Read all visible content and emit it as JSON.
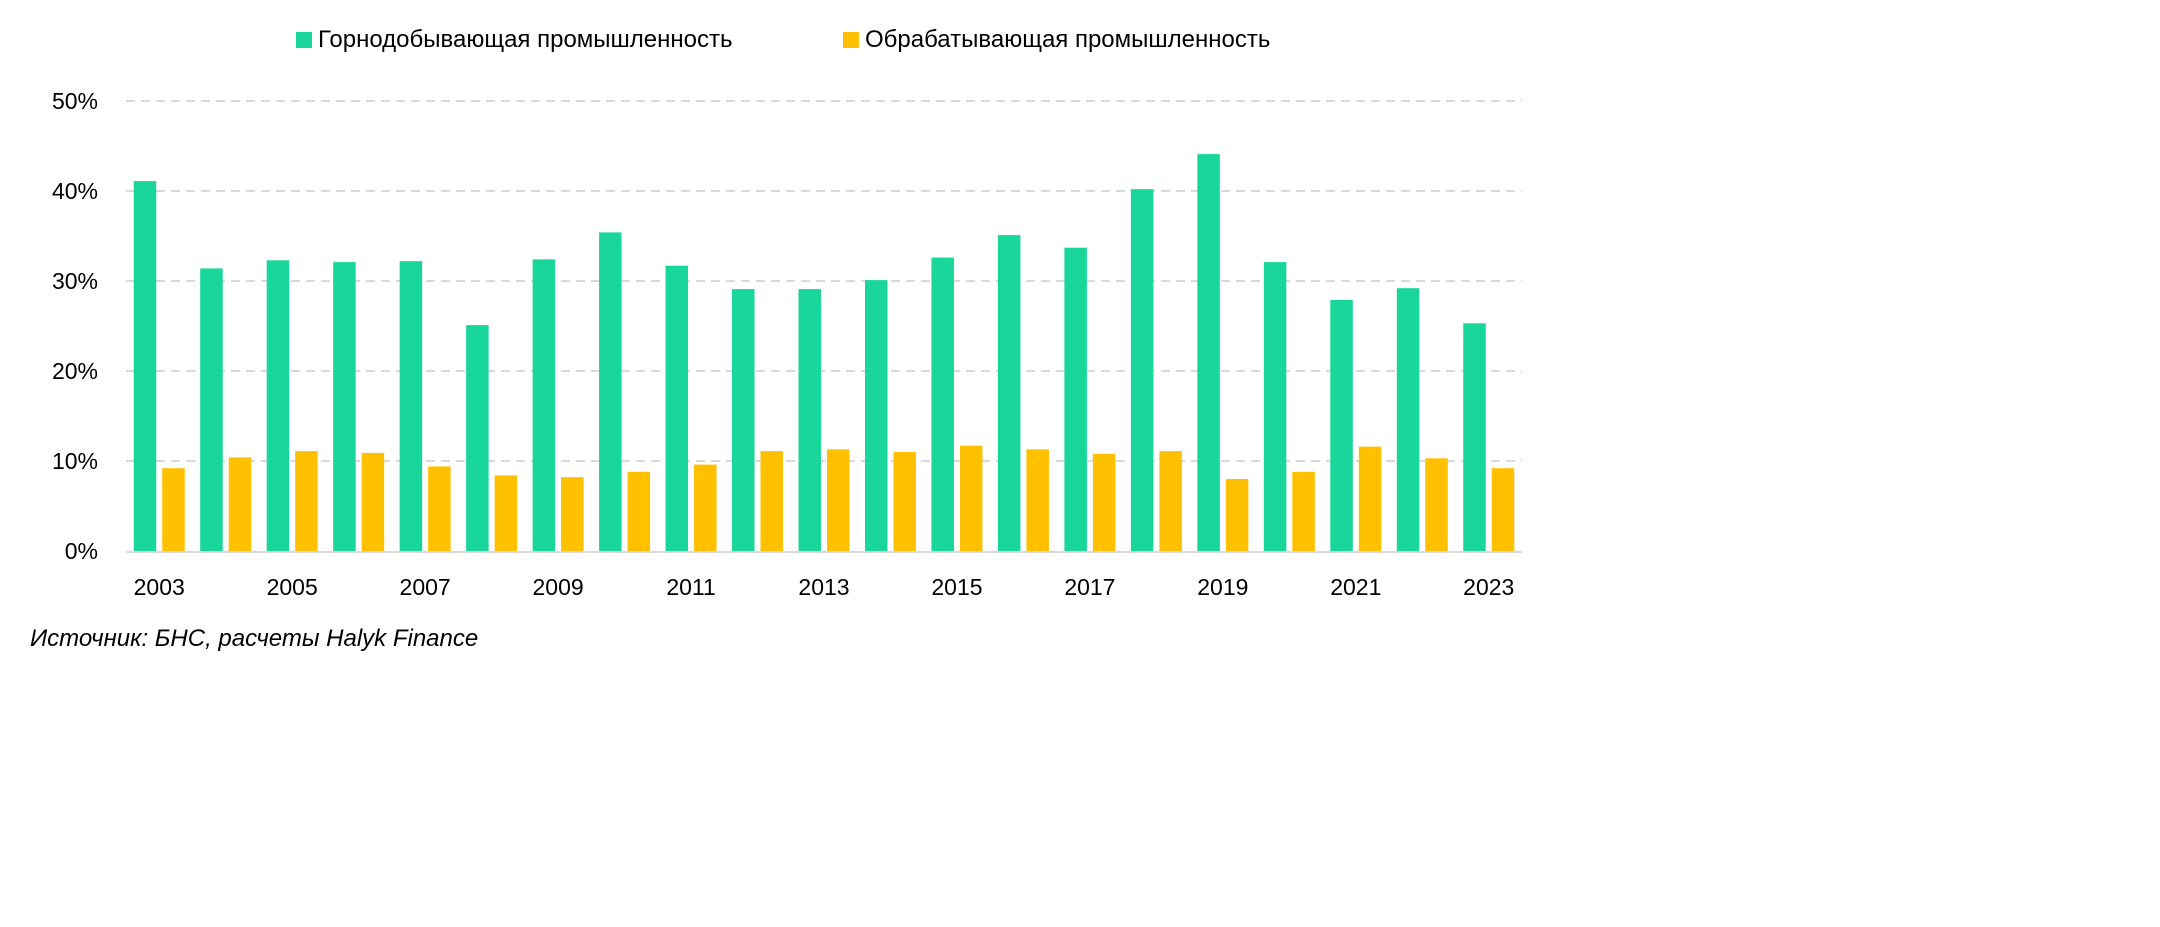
{
  "chart_data": {
    "type": "bar",
    "categories": [
      "2003",
      "2004",
      "2005",
      "2006",
      "2007",
      "2008",
      "2009",
      "2010",
      "2011",
      "2012",
      "2013",
      "2014",
      "2015",
      "2016",
      "2017",
      "2018",
      "2019",
      "2020",
      "2021",
      "2022",
      "2023"
    ],
    "x_tick_labels": [
      "2003",
      "2005",
      "2007",
      "2009",
      "2011",
      "2013",
      "2015",
      "2017",
      "2019",
      "2021",
      "2023"
    ],
    "series": [
      {
        "name": "Горнодобывающая промышленность",
        "color": "#19d69a",
        "values": [
          41.1,
          31.4,
          32.3,
          32.1,
          32.2,
          25.1,
          32.4,
          35.4,
          31.7,
          29.1,
          29.1,
          30.1,
          32.6,
          35.1,
          33.7,
          40.2,
          44.1,
          32.1,
          27.9,
          29.2,
          25.3
        ]
      },
      {
        "name": "Обрабатывающая промышленность",
        "color": "#ffc000",
        "values": [
          9.2,
          10.4,
          11.1,
          10.9,
          9.4,
          8.4,
          8.2,
          8.8,
          9.6,
          11.1,
          11.3,
          11.0,
          11.7,
          11.3,
          10.8,
          11.1,
          8.0,
          8.8,
          11.6,
          10.3,
          9.2
        ]
      }
    ],
    "y_ticks": [
      0,
      10,
      20,
      30,
      40,
      50
    ],
    "y_tick_labels": [
      "0%",
      "10%",
      "20%",
      "30%",
      "40%",
      "50%"
    ],
    "ylim": [
      0,
      50
    ],
    "grid": true,
    "legend_position": "top-center"
  },
  "legend": {
    "items": [
      {
        "label": "Горнодобывающая промышленность",
        "color": "#19d69a"
      },
      {
        "label": "Обрабатывающая промышленность",
        "color": "#ffc000"
      }
    ]
  },
  "footer": {
    "source": "Источник: БНС, расчеты Halyk Finance"
  }
}
